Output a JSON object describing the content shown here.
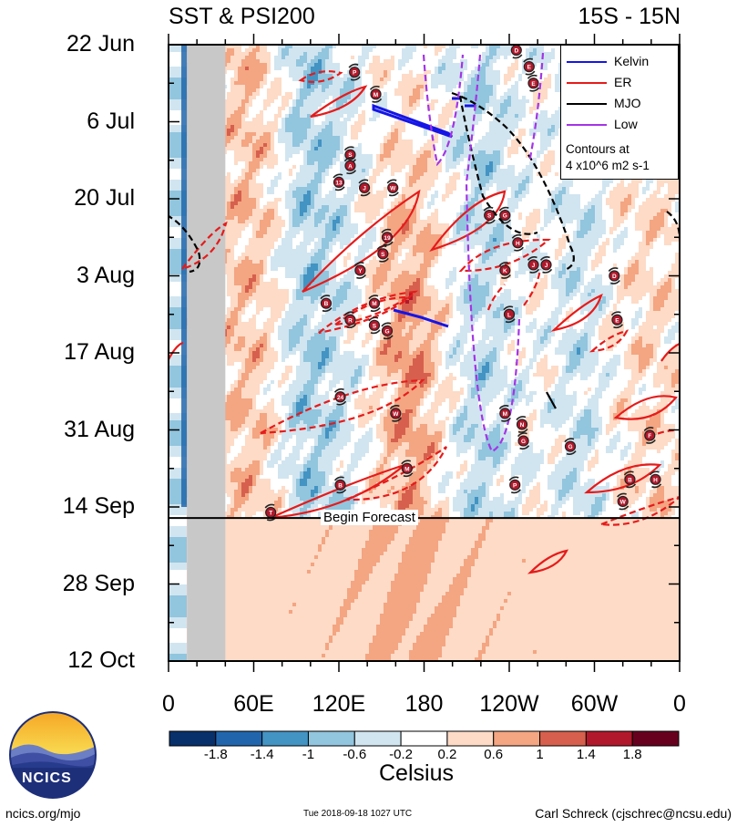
{
  "header": {
    "left_title": "SST & PSI200",
    "right_title": "15S - 15N"
  },
  "chart_data": {
    "type": "heatmap",
    "title": "SST & PSI200",
    "region": "15S - 15N",
    "y_axis": {
      "ticks": [
        "22 Jun",
        "6 Jul",
        "20 Jul",
        "3 Aug",
        "17 Aug",
        "31 Aug",
        "14 Sep",
        "28 Sep",
        "12 Oct"
      ],
      "tick_days": [
        0,
        14,
        28,
        42,
        56,
        70,
        84,
        98,
        112
      ],
      "range_days": [
        0,
        112
      ],
      "direction": "down"
    },
    "x_axis": {
      "ticks": [
        "0",
        "60E",
        "120E",
        "180",
        "120W",
        "60W",
        "0"
      ],
      "tick_lon": [
        0,
        60,
        120,
        180,
        240,
        300,
        360
      ],
      "range_lon": [
        0,
        360
      ]
    },
    "forecast": {
      "label": "Begin Forecast",
      "day": 86
    },
    "land_mask_lon": [
      13,
      40
    ],
    "colorbar": {
      "title": "Celsius",
      "tick_labels": [
        "-1.8",
        "-1.4",
        "-1",
        "-0.6",
        "-0.2",
        "0.2",
        "0.6",
        "1",
        "1.4",
        "1.8"
      ],
      "colors": [
        "#08306b",
        "#2166ac",
        "#4393c3",
        "#92c5de",
        "#d1e5f0",
        "#ffffff",
        "#fddbc7",
        "#f4a582",
        "#d6604d",
        "#b2182b",
        "#67001f"
      ]
    },
    "legend": {
      "placement": "top-right",
      "entries": [
        {
          "name": "Kelvin",
          "color": "#1515e6"
        },
        {
          "name": "ER",
          "color": "#e61b1b"
        },
        {
          "name": "MJO",
          "color": "#000000"
        },
        {
          "name": "Low",
          "color": "#a335e6"
        }
      ],
      "note_line1": "Contours at",
      "note_line2": "4 x10^6 m2 s-1"
    },
    "cyclone_markers": [
      {
        "label": "D",
        "lon": 245,
        "day": 1
      },
      {
        "label": "E",
        "lon": 254,
        "day": 4
      },
      {
        "label": "E",
        "lon": 257,
        "day": 7
      },
      {
        "label": "P",
        "lon": 131,
        "day": 5
      },
      {
        "label": "M",
        "lon": 146,
        "day": 9
      },
      {
        "label": "S",
        "lon": 128,
        "day": 20
      },
      {
        "label": "A",
        "lon": 128,
        "day": 22
      },
      {
        "label": "13",
        "lon": 120,
        "day": 25
      },
      {
        "label": "J",
        "lon": 138,
        "day": 26
      },
      {
        "label": "W",
        "lon": 158,
        "day": 26
      },
      {
        "label": "S",
        "lon": 226,
        "day": 31
      },
      {
        "label": "G",
        "lon": 237,
        "day": 31
      },
      {
        "label": "19",
        "lon": 154,
        "day": 35
      },
      {
        "label": "H",
        "lon": 246,
        "day": 36
      },
      {
        "label": "S",
        "lon": 151,
        "day": 38
      },
      {
        "label": "J",
        "lon": 257,
        "day": 40
      },
      {
        "label": "J",
        "lon": 266,
        "day": 40
      },
      {
        "label": "Y",
        "lon": 135,
        "day": 41
      },
      {
        "label": "K",
        "lon": 237,
        "day": 41
      },
      {
        "label": "D",
        "lon": 314,
        "day": 42
      },
      {
        "label": "B",
        "lon": 111,
        "day": 47
      },
      {
        "label": "M",
        "lon": 145,
        "day": 47
      },
      {
        "label": "R",
        "lon": 128,
        "day": 50
      },
      {
        "label": "S",
        "lon": 145,
        "day": 51
      },
      {
        "label": "G",
        "lon": 154,
        "day": 52
      },
      {
        "label": "L",
        "lon": 240,
        "day": 49
      },
      {
        "label": "E",
        "lon": 316,
        "day": 50
      },
      {
        "label": "24",
        "lon": 121,
        "day": 64
      },
      {
        "label": "M",
        "lon": 237,
        "day": 67
      },
      {
        "label": "W",
        "lon": 160,
        "day": 67
      },
      {
        "label": "N",
        "lon": 249,
        "day": 69
      },
      {
        "label": "F",
        "lon": 339,
        "day": 71
      },
      {
        "label": "G",
        "lon": 250,
        "day": 72
      },
      {
        "label": "G",
        "lon": 283,
        "day": 73
      },
      {
        "label": "M",
        "lon": 168,
        "day": 77
      },
      {
        "label": "B",
        "lon": 121,
        "day": 80
      },
      {
        "label": "P",
        "lon": 244,
        "day": 80
      },
      {
        "label": "B",
        "lon": 325,
        "day": 79
      },
      {
        "label": "H",
        "lon": 343,
        "day": 79
      },
      {
        "label": "W",
        "lon": 320,
        "day": 83
      },
      {
        "label": "T",
        "lon": 72,
        "day": 85
      }
    ]
  },
  "footer": {
    "logo_text": "NCICS",
    "site": "ncics.org/mjo",
    "timestamp": "Tue 2018-09-18 1027 UTC",
    "author": "Carl Schreck (cjschrec@ncsu.edu)"
  }
}
